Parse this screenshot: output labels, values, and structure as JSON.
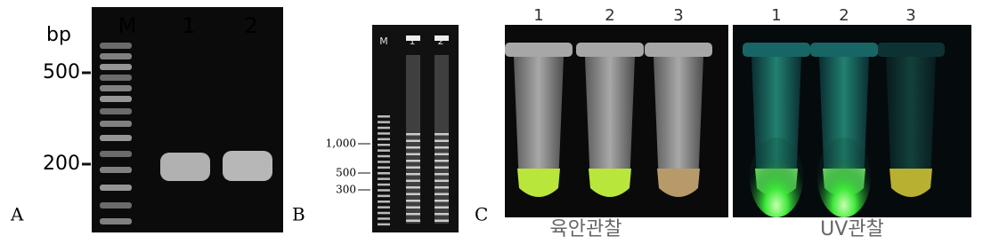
{
  "panels": [
    {
      "label": "A",
      "unit": "bp",
      "lanes": [
        "M",
        "1",
        "2"
      ],
      "markers": [
        "500",
        "200"
      ]
    },
    {
      "label": "B",
      "lanes": [
        "M",
        "1",
        "2"
      ],
      "markers": [
        "1,000",
        "500",
        "300"
      ]
    },
    {
      "label": "C",
      "views": [
        {
          "lanes": [
            "1",
            "2",
            "3"
          ],
          "caption": "육안관찰"
        },
        {
          "lanes": [
            "1",
            "2",
            "3"
          ],
          "caption": "UV관찰"
        }
      ]
    }
  ]
}
